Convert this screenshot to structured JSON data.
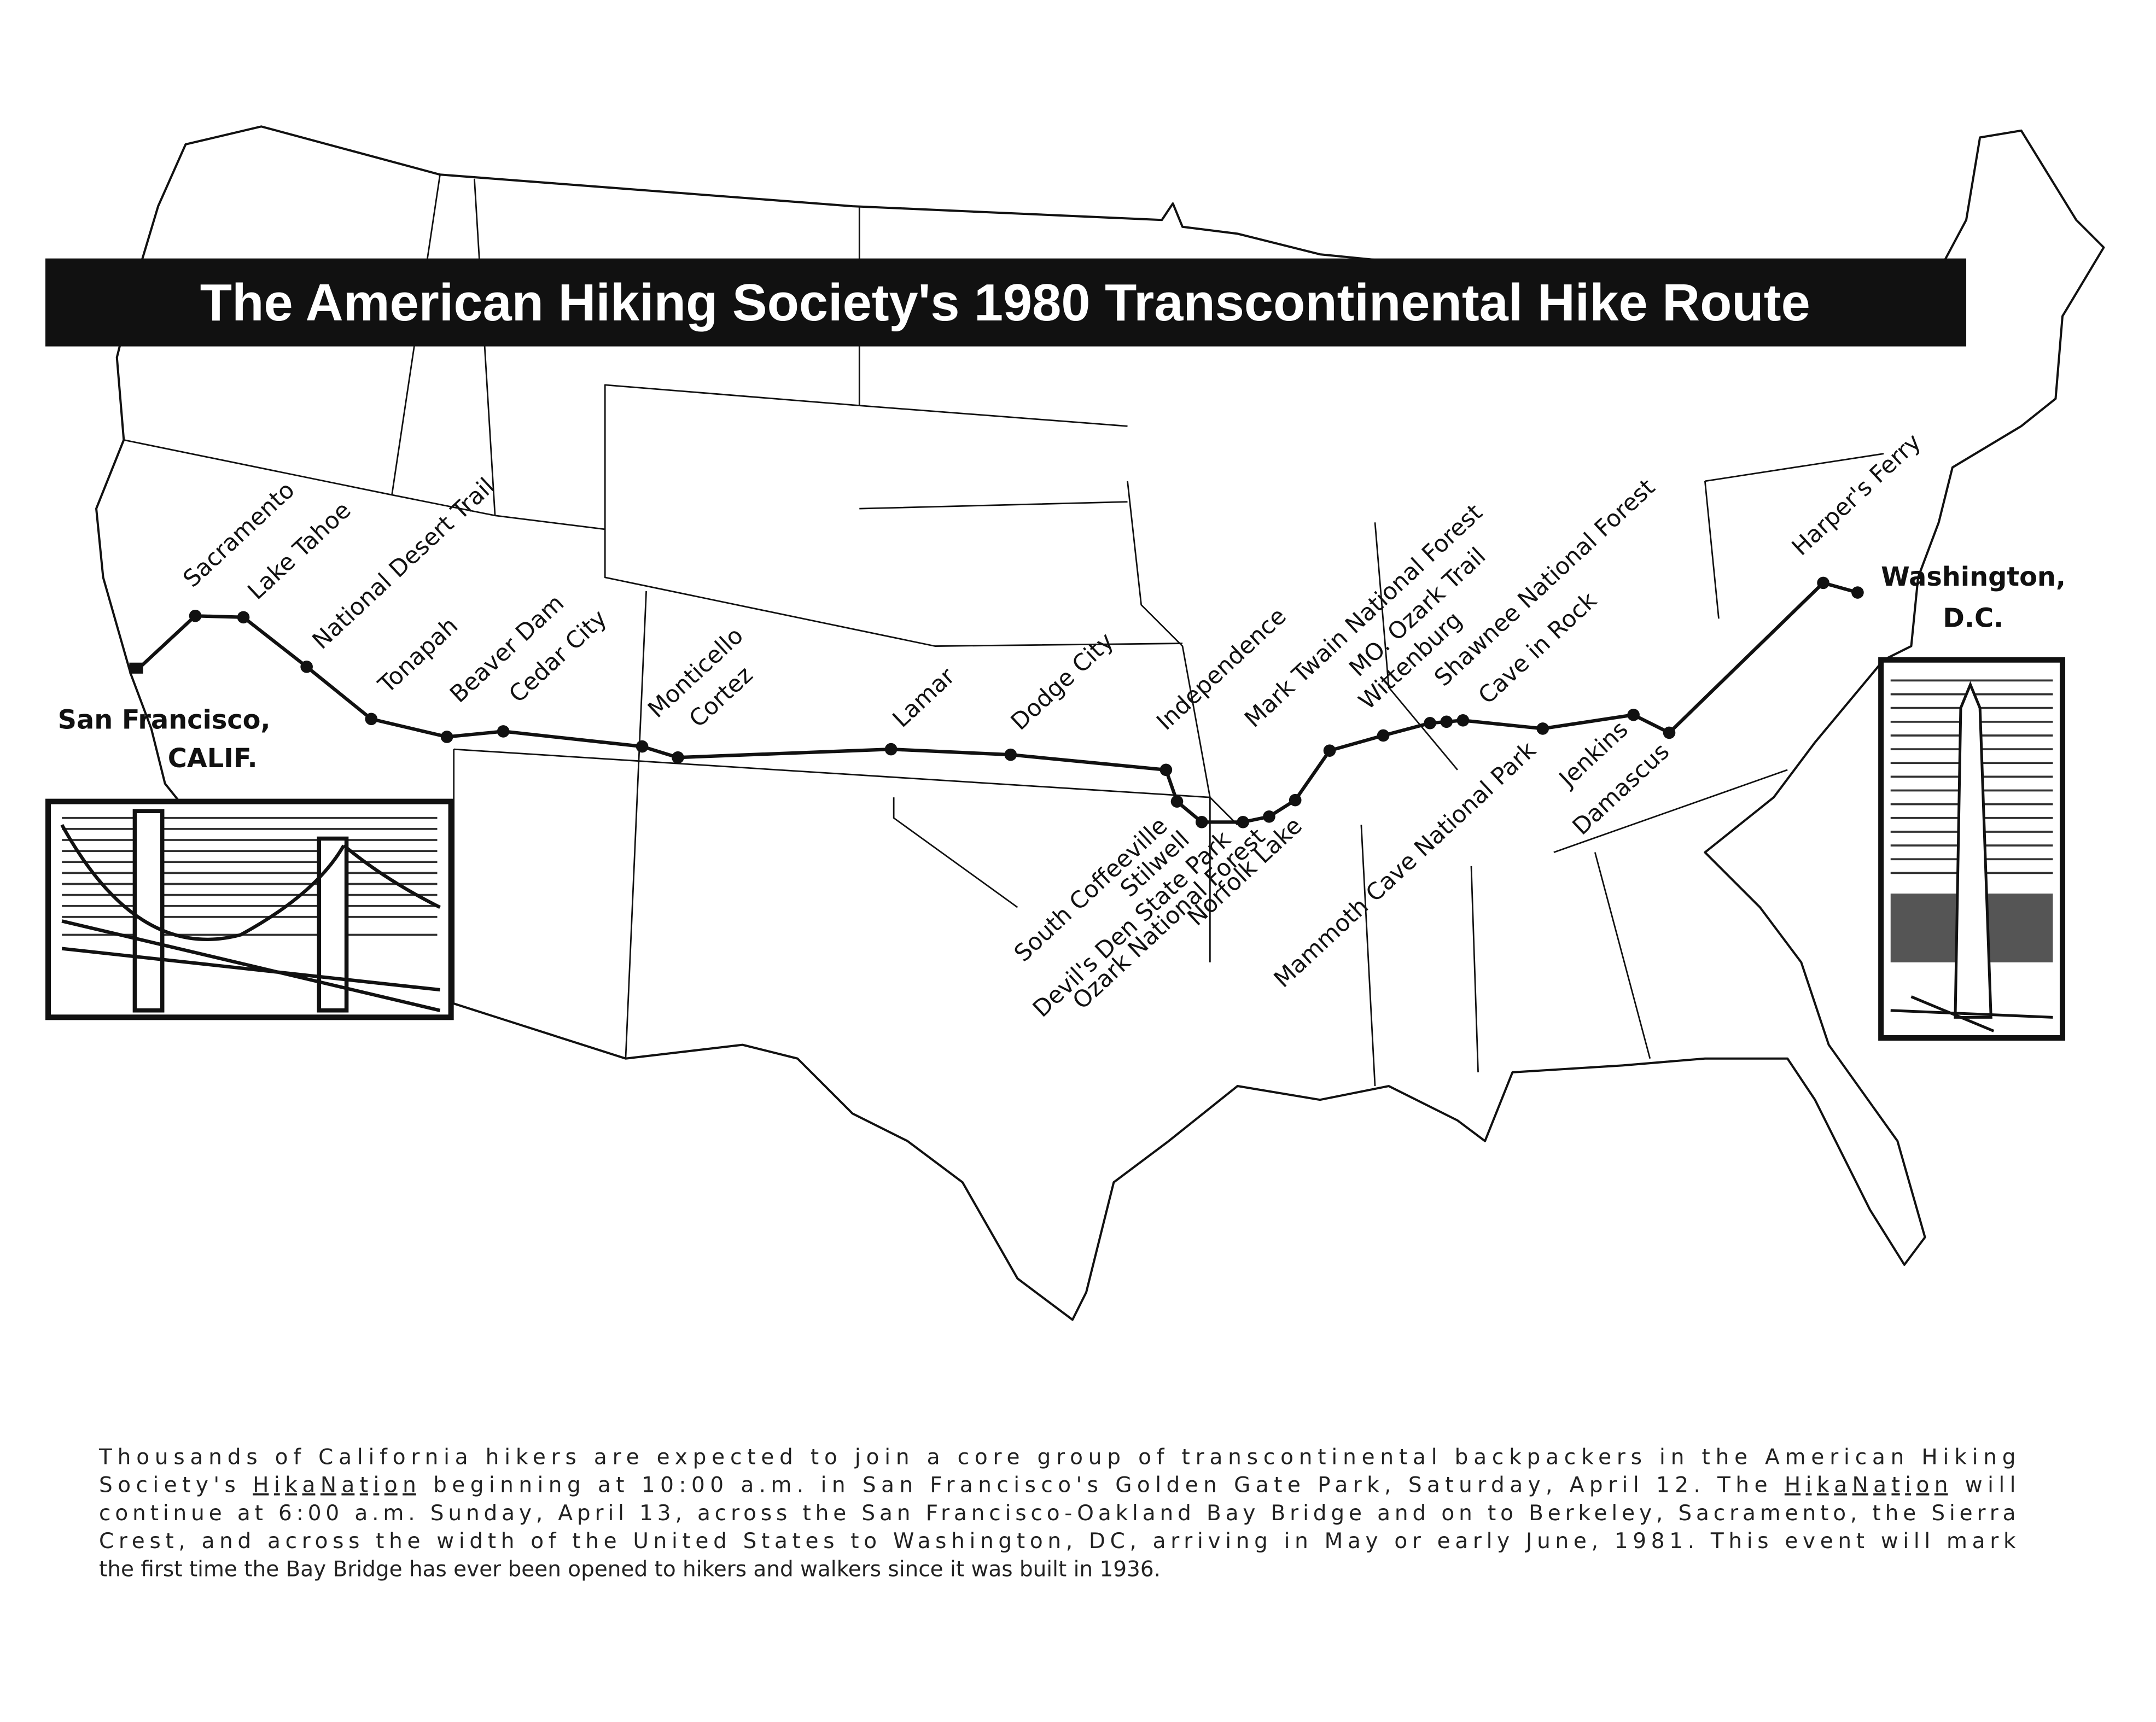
{
  "title": "The American Hiking Society's 1980 Transcontinental Hike Route",
  "origin": {
    "name": "San Francisco,",
    "region": "CALIF."
  },
  "destination": {
    "name": "Washington,",
    "region": "D.C."
  },
  "stops": [
    "Sacramento",
    "Lake Tahoe",
    "National Desert Trail",
    "Tonapah",
    "Beaver Dam",
    "Cedar City",
    "Monticello",
    "Cortez",
    "Lamar",
    "Dodge City",
    "Independence",
    "South Coffeeville",
    "Stilwell",
    "Devil's Den State Park",
    "Ozark National Forest",
    "Norfolk Lake",
    "Mark Twain National Forest",
    "MO. Ozark Trail",
    "Wittenburg",
    "Shawnee National Forest",
    "Cave in Rock",
    "Mammoth Cave National Park",
    "Jenkins",
    "Damascus",
    "Harper's Ferry"
  ],
  "caption": [
    [
      "Thousands of California hikers are expected to join a core group of transcontinental backpackers in the American Hiking"
    ],
    [
      "Society's ",
      "HikaNation",
      " beginning at 10:00 a.m. in San Francisco's Golden Gate Park, Saturday, April 12.  The ",
      "HikaNation",
      " will"
    ],
    [
      "continue at 6:00 a.m. Sunday, April 13, across the San Francisco-Oakland Bay Bridge and on to Berkeley, Sacramento, the Sierra"
    ],
    [
      "Crest, and across the width of the United States to Washington, DC, arriving in May or early June, 1981.  This event will mark"
    ],
    [
      "the first time the Bay Bridge has ever been opened to hikers and walkers since it was built in 1936."
    ]
  ]
}
